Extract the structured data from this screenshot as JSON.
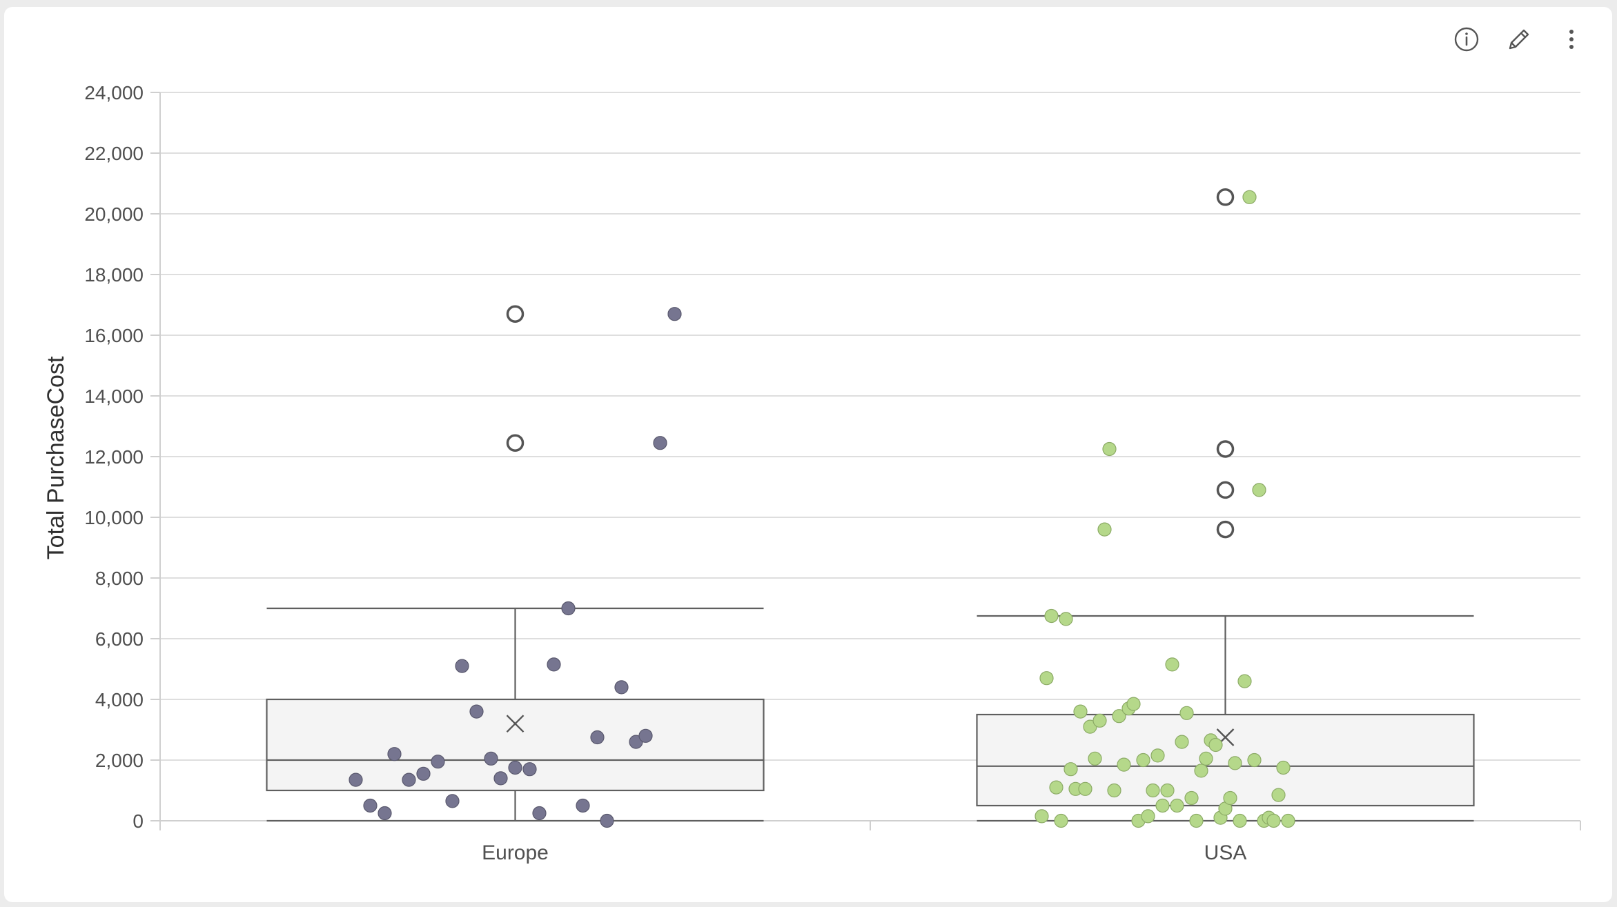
{
  "toolbar": {
    "icons": [
      "info-icon",
      "pencil-icon",
      "more-vertical-icon"
    ]
  },
  "chart_data": {
    "type": "box",
    "title": "",
    "xlabel": "",
    "ylabel": "Total PurchaseCost",
    "ylim": [
      0,
      24000
    ],
    "yticks": [
      0,
      2000,
      4000,
      6000,
      8000,
      10000,
      12000,
      14000,
      16000,
      18000,
      20000,
      22000,
      24000
    ],
    "ytick_labels": [
      "0",
      "2,000",
      "4,000",
      "6,000",
      "8,000",
      "10,000",
      "12,000",
      "14,000",
      "16,000",
      "18,000",
      "20,000",
      "22,000",
      "24,000"
    ],
    "grid": true,
    "categories": [
      "Europe",
      "USA"
    ],
    "series": [
      {
        "name": "Europe",
        "color": "#767590",
        "whisker_low": 0,
        "q1": 1000,
        "median": 2000,
        "q3": 4000,
        "whisker_high": 7000,
        "mean": 3200,
        "outliers": [
          16700,
          12450
        ],
        "points": [
          {
            "jitter": -0.33,
            "value": 1350
          },
          {
            "jitter": -0.3,
            "value": 500
          },
          {
            "jitter": -0.27,
            "value": 250
          },
          {
            "jitter": -0.25,
            "value": 2200
          },
          {
            "jitter": -0.22,
            "value": 1350
          },
          {
            "jitter": -0.19,
            "value": 1550
          },
          {
            "jitter": -0.16,
            "value": 1950
          },
          {
            "jitter": -0.13,
            "value": 650
          },
          {
            "jitter": -0.11,
            "value": 5100
          },
          {
            "jitter": -0.08,
            "value": 3600
          },
          {
            "jitter": -0.05,
            "value": 2050
          },
          {
            "jitter": -0.03,
            "value": 1400
          },
          {
            "jitter": 0.0,
            "value": 1750
          },
          {
            "jitter": 0.03,
            "value": 1700
          },
          {
            "jitter": 0.05,
            "value": 250
          },
          {
            "jitter": 0.08,
            "value": 5150
          },
          {
            "jitter": 0.11,
            "value": 7000
          },
          {
            "jitter": 0.14,
            "value": 500
          },
          {
            "jitter": 0.17,
            "value": 2750
          },
          {
            "jitter": 0.19,
            "value": 0
          },
          {
            "jitter": 0.22,
            "value": 4400
          },
          {
            "jitter": 0.25,
            "value": 2600
          },
          {
            "jitter": 0.27,
            "value": 2800
          },
          {
            "jitter": 0.3,
            "value": 12450
          },
          {
            "jitter": 0.33,
            "value": 16700
          }
        ]
      },
      {
        "name": "USA",
        "color": "#b5d88a",
        "whisker_low": 0,
        "q1": 500,
        "median": 1800,
        "q3": 3500,
        "whisker_high": 6750,
        "mean": 2750,
        "outliers": [
          20550,
          12250,
          10900,
          9600
        ],
        "points": [
          {
            "jitter": -0.38,
            "value": 150
          },
          {
            "jitter": -0.37,
            "value": 4700
          },
          {
            "jitter": -0.36,
            "value": 6750
          },
          {
            "jitter": -0.35,
            "value": 1100
          },
          {
            "jitter": -0.34,
            "value": 0
          },
          {
            "jitter": -0.33,
            "value": 6650
          },
          {
            "jitter": -0.32,
            "value": 1700
          },
          {
            "jitter": -0.31,
            "value": 1050
          },
          {
            "jitter": -0.3,
            "value": 3600
          },
          {
            "jitter": -0.29,
            "value": 1050
          },
          {
            "jitter": -0.28,
            "value": 3100
          },
          {
            "jitter": -0.27,
            "value": 2050
          },
          {
            "jitter": -0.26,
            "value": 3300
          },
          {
            "jitter": -0.25,
            "value": 9600
          },
          {
            "jitter": -0.24,
            "value": 12250
          },
          {
            "jitter": -0.23,
            "value": 1000
          },
          {
            "jitter": -0.22,
            "value": 3450
          },
          {
            "jitter": -0.21,
            "value": 1850
          },
          {
            "jitter": -0.2,
            "value": 3700
          },
          {
            "jitter": -0.19,
            "value": 3850
          },
          {
            "jitter": -0.18,
            "value": 0
          },
          {
            "jitter": -0.17,
            "value": 2000
          },
          {
            "jitter": -0.16,
            "value": 150
          },
          {
            "jitter": -0.15,
            "value": 1000
          },
          {
            "jitter": -0.14,
            "value": 2150
          },
          {
            "jitter": -0.13,
            "value": 500
          },
          {
            "jitter": -0.12,
            "value": 1000
          },
          {
            "jitter": -0.11,
            "value": 5150
          },
          {
            "jitter": -0.1,
            "value": 500
          },
          {
            "jitter": -0.09,
            "value": 2600
          },
          {
            "jitter": -0.08,
            "value": 3550
          },
          {
            "jitter": -0.07,
            "value": 750
          },
          {
            "jitter": -0.06,
            "value": 0
          },
          {
            "jitter": -0.05,
            "value": 1650
          },
          {
            "jitter": -0.04,
            "value": 2050
          },
          {
            "jitter": -0.03,
            "value": 2650
          },
          {
            "jitter": -0.02,
            "value": 2500
          },
          {
            "jitter": -0.01,
            "value": 100
          },
          {
            "jitter": 0.0,
            "value": 400
          },
          {
            "jitter": 0.01,
            "value": 750
          },
          {
            "jitter": 0.02,
            "value": 1900
          },
          {
            "jitter": 0.03,
            "value": 0
          },
          {
            "jitter": 0.04,
            "value": 4600
          },
          {
            "jitter": 0.05,
            "value": 20550
          },
          {
            "jitter": 0.06,
            "value": 2000
          },
          {
            "jitter": 0.07,
            "value": 10900
          },
          {
            "jitter": 0.08,
            "value": 0
          },
          {
            "jitter": 0.09,
            "value": 100
          },
          {
            "jitter": 0.1,
            "value": 0
          },
          {
            "jitter": 0.11,
            "value": 850
          },
          {
            "jitter": 0.12,
            "value": 1750
          },
          {
            "jitter": 0.13,
            "value": 0
          }
        ]
      }
    ]
  }
}
